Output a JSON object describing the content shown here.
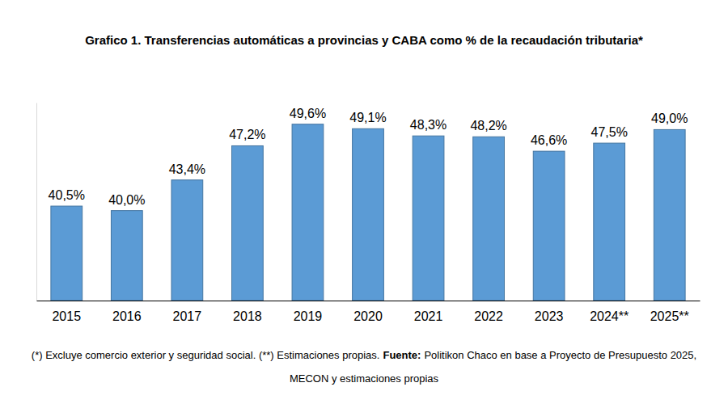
{
  "chart_data": {
    "type": "bar",
    "title": "Grafico 1. Transferencias automáticas a provincias y CABA como % de la recaudación tributaria*",
    "categories": [
      "2015",
      "2016",
      "2017",
      "2018",
      "2019",
      "2020",
      "2021",
      "2022",
      "2023",
      "2024**",
      "2025**"
    ],
    "values": [
      40.5,
      40.0,
      43.4,
      47.2,
      49.6,
      49.1,
      48.3,
      48.2,
      46.6,
      47.5,
      49.0
    ],
    "value_labels": [
      "40,5%",
      "40,0%",
      "43,4%",
      "47,2%",
      "49,6%",
      "49,1%",
      "48,3%",
      "48,2%",
      "46,6%",
      "47,5%",
      "49,0%"
    ],
    "color": "#5b9bd5",
    "ylim": [
      30,
      52
    ],
    "grid": false,
    "data_labels": true,
    "tick_labels": "x",
    "footnote": "(*) Excluye comercio exterior y seguridad social. (**) Estimaciones propias.",
    "source_label": "Fuente:",
    "source": "Politikon Chaco en base a Proyecto de Presupuesto 2025, MECON y estimaciones propias"
  }
}
